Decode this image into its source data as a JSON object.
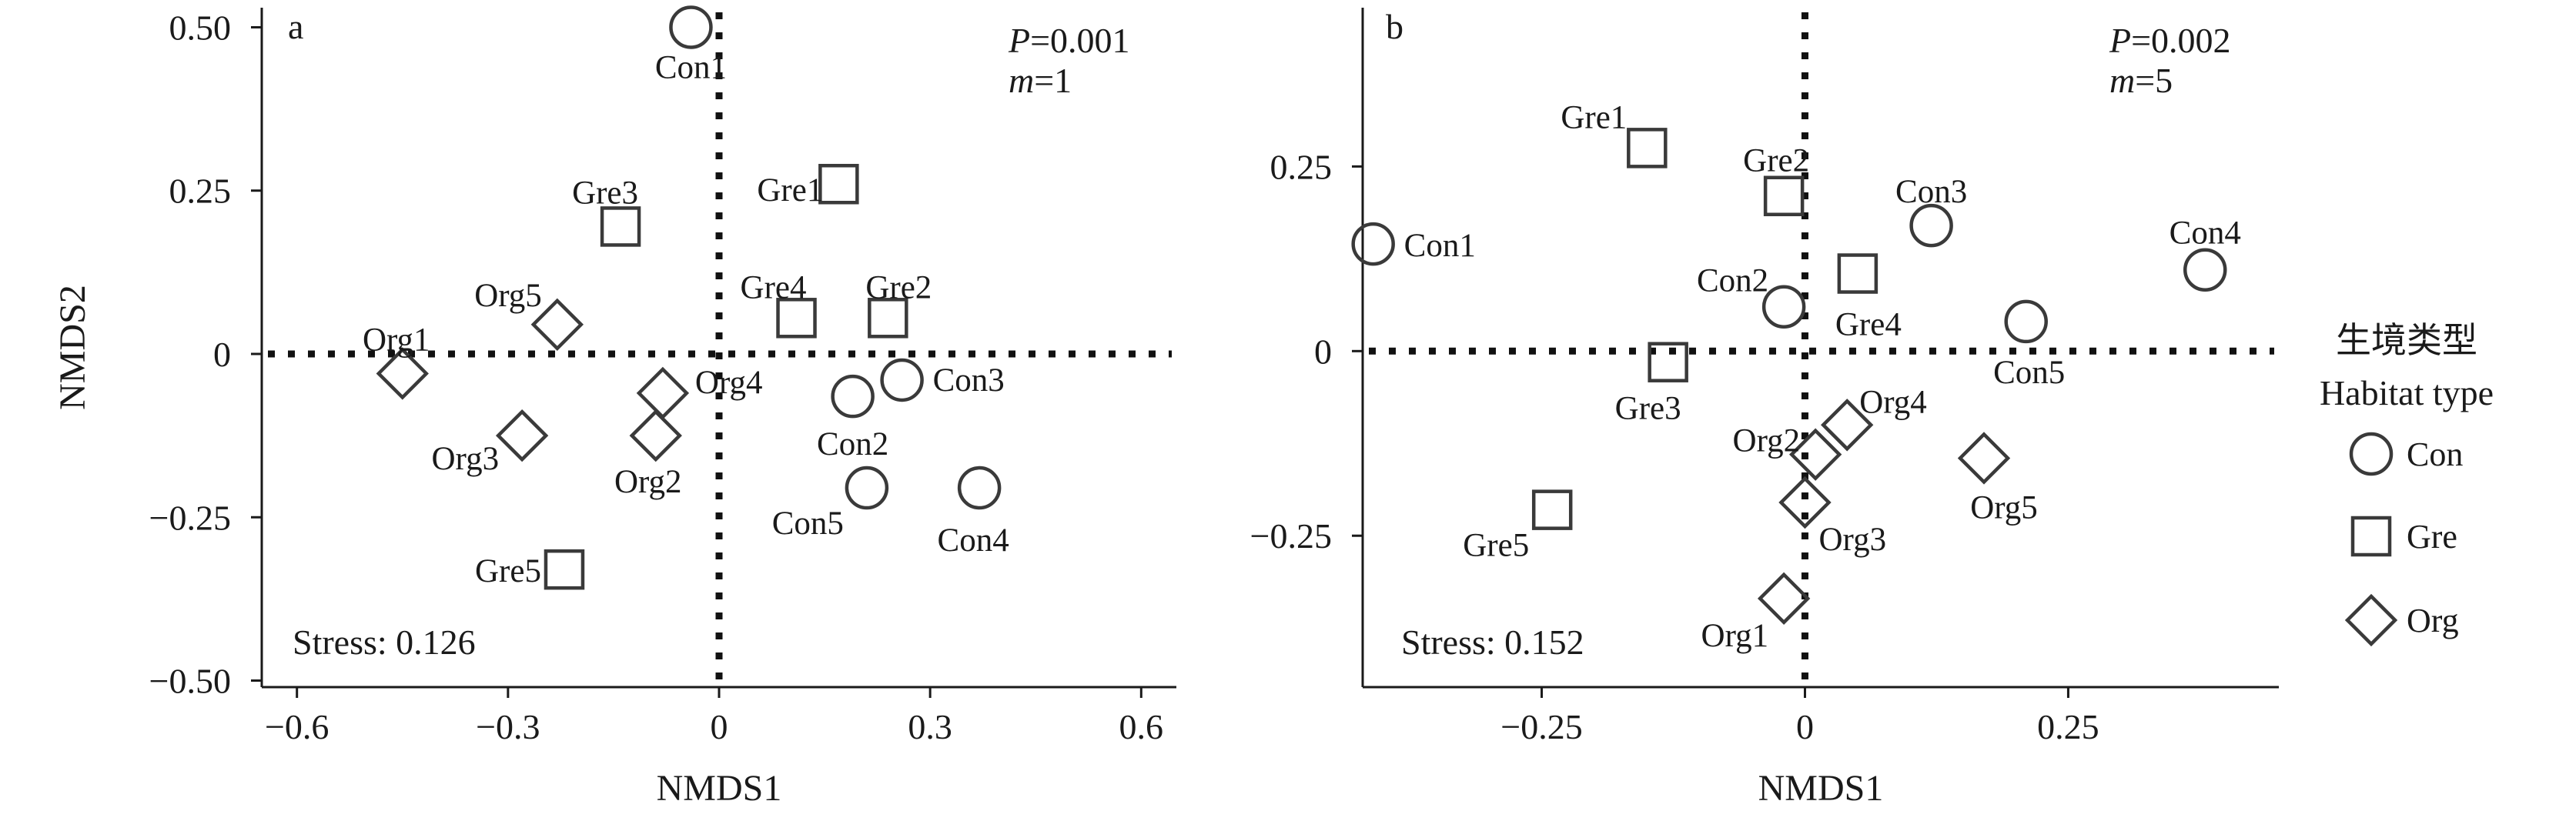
{
  "chart_data": [
    {
      "type": "scatter",
      "panel_label": "a",
      "xlabel": "NMDS1",
      "ylabel": "NMDS2",
      "xlim": [
        -0.65,
        0.65
      ],
      "ylim": [
        -0.51,
        0.53
      ],
      "xticks": [
        -0.6,
        -0.3,
        0,
        0.3,
        0.6
      ],
      "xtick_labels": [
        "−0.6",
        "−0.3",
        "0",
        "0.3",
        "0.6"
      ],
      "yticks": [
        -0.5,
        -0.25,
        0,
        0.25,
        0.5
      ],
      "ytick_labels": [
        "−0.50",
        "−0.25",
        "0",
        "0.25",
        "0.50"
      ],
      "stats": {
        "p_prefix": "P",
        "p_value": "=0.001",
        "m_prefix": "m",
        "m_value": "=1"
      },
      "stress": "Stress: 0.126",
      "points": [
        {
          "label": "Con1",
          "group": "Con",
          "x": -0.04,
          "y": 0.5
        },
        {
          "label": "Con2",
          "group": "Con",
          "x": 0.19,
          "y": -0.065
        },
        {
          "label": "Con3",
          "group": "Con",
          "x": 0.26,
          "y": -0.04
        },
        {
          "label": "Con4",
          "group": "Con",
          "x": 0.37,
          "y": -0.205
        },
        {
          "label": "Con5",
          "group": "Con",
          "x": 0.21,
          "y": -0.205
        },
        {
          "label": "Gre1",
          "group": "Gre",
          "x": 0.17,
          "y": 0.26
        },
        {
          "label": "Gre2",
          "group": "Gre",
          "x": 0.24,
          "y": 0.055
        },
        {
          "label": "Gre3",
          "group": "Gre",
          "x": -0.14,
          "y": 0.195
        },
        {
          "label": "Gre4",
          "group": "Gre",
          "x": 0.11,
          "y": 0.055
        },
        {
          "label": "Gre5",
          "group": "Gre",
          "x": -0.22,
          "y": -0.33
        },
        {
          "label": "Org1",
          "group": "Org",
          "x": -0.45,
          "y": -0.03
        },
        {
          "label": "Org2",
          "group": "Org",
          "x": -0.09,
          "y": -0.125
        },
        {
          "label": "Org3",
          "group": "Org",
          "x": -0.28,
          "y": -0.125
        },
        {
          "label": "Org4",
          "group": "Org",
          "x": -0.08,
          "y": -0.06
        },
        {
          "label": "Org5",
          "group": "Org",
          "x": -0.23,
          "y": 0.045
        }
      ]
    },
    {
      "type": "scatter",
      "panel_label": "b",
      "xlabel": "NMDS1",
      "ylabel": "",
      "xlim": [
        -0.42,
        0.45
      ],
      "ylim": [
        -0.455,
        0.465
      ],
      "xticks": [
        -0.25,
        0,
        0.25
      ],
      "xtick_labels": [
        "−0.25",
        "0",
        "0.25"
      ],
      "yticks": [
        -0.25,
        0,
        0.25
      ],
      "ytick_labels": [
        "−0.25",
        "0",
        "0.25"
      ],
      "stats": {
        "p_prefix": "P",
        "p_value": "=0.002",
        "m_prefix": "m",
        "m_value": "=5"
      },
      "stress": "Stress: 0.152",
      "points": [
        {
          "label": "Con1",
          "group": "Con",
          "x": -0.41,
          "y": 0.145
        },
        {
          "label": "Con2",
          "group": "Con",
          "x": -0.02,
          "y": 0.06
        },
        {
          "label": "Con3",
          "group": "Con",
          "x": 0.12,
          "y": 0.17
        },
        {
          "label": "Con4",
          "group": "Con",
          "x": 0.38,
          "y": 0.11
        },
        {
          "label": "Con5",
          "group": "Con",
          "x": 0.21,
          "y": 0.04
        },
        {
          "label": "Gre1",
          "group": "Gre",
          "x": -0.15,
          "y": 0.275
        },
        {
          "label": "Gre2",
          "group": "Gre",
          "x": -0.02,
          "y": 0.21
        },
        {
          "label": "Gre3",
          "group": "Gre",
          "x": -0.13,
          "y": -0.015
        },
        {
          "label": "Gre4",
          "group": "Gre",
          "x": 0.05,
          "y": 0.105
        },
        {
          "label": "Gre5",
          "group": "Gre",
          "x": -0.24,
          "y": -0.215
        },
        {
          "label": "Org1",
          "group": "Org",
          "x": -0.02,
          "y": -0.335
        },
        {
          "label": "Org2",
          "group": "Org",
          "x": 0.01,
          "y": -0.14
        },
        {
          "label": "Org3",
          "group": "Org",
          "x": 0.0,
          "y": -0.205
        },
        {
          "label": "Org4",
          "group": "Org",
          "x": 0.04,
          "y": -0.1
        },
        {
          "label": "Org5",
          "group": "Org",
          "x": 0.17,
          "y": -0.145
        }
      ]
    }
  ],
  "legend": {
    "title_zh": "生境类型",
    "title_en": "Habitat type",
    "items": [
      {
        "group": "Con",
        "label": "Con",
        "shape": "circle"
      },
      {
        "group": "Gre",
        "label": "Gre",
        "shape": "square"
      },
      {
        "group": "Org",
        "label": "Org",
        "shape": "diamond"
      }
    ]
  },
  "colors": {
    "marker": "#3a3a3a",
    "text": "#1a1a1a",
    "zero_line": "#111111"
  }
}
